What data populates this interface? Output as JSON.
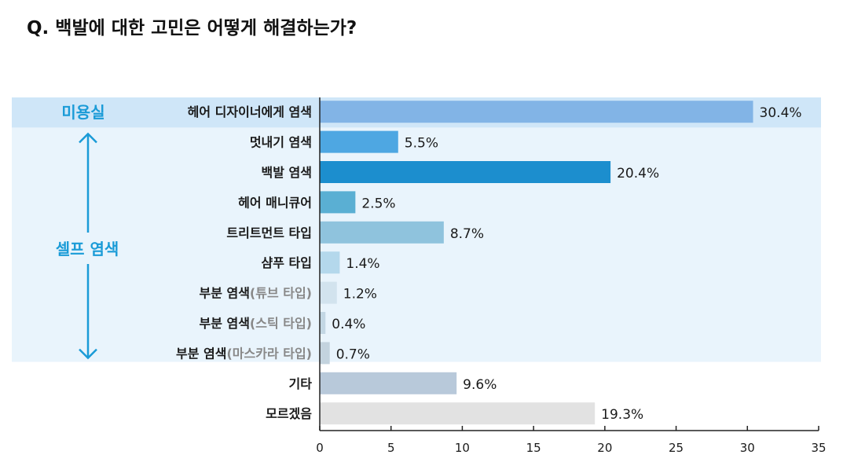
{
  "title": "Q. 백발에 대한 고민은 어떻게 해결하는가?",
  "chart_data": {
    "type": "bar",
    "orientation": "horizontal",
    "categories": [
      {
        "main": "헤어 디자이너에게 염색",
        "sub": ""
      },
      {
        "main": "멋내기 염색",
        "sub": ""
      },
      {
        "main": "백발 염색",
        "sub": ""
      },
      {
        "main": "헤어 매니큐어",
        "sub": ""
      },
      {
        "main": "트리트먼트 타입",
        "sub": ""
      },
      {
        "main": "샴푸 타입",
        "sub": ""
      },
      {
        "main": "부분 염색",
        "sub": "(튜브 타입)"
      },
      {
        "main": "부분 염색",
        "sub": "(스틱 타입)"
      },
      {
        "main": "부분 염색",
        "sub": "(마스카라 타입)"
      },
      {
        "main": "기타",
        "sub": ""
      },
      {
        "main": "모르겠음",
        "sub": ""
      }
    ],
    "values": [
      30.4,
      5.5,
      20.4,
      2.5,
      8.7,
      1.4,
      1.2,
      0.4,
      0.7,
      9.6,
      19.3
    ],
    "value_labels": [
      "30.4%",
      "5.5%",
      "20.4%",
      "2.5%",
      "8.7%",
      "1.4%",
      "1.2%",
      "0.4%",
      "0.7%",
      "9.6%",
      "19.3%"
    ],
    "colors": [
      "#82b4e6",
      "#4ea7e2",
      "#1c8ece",
      "#5aafd3",
      "#8fc3dd",
      "#b4d8ec",
      "#d2e3ee",
      "#c3d7e4",
      "#c3d3de",
      "#b8c9da",
      "#e2e2e2"
    ],
    "xlim": [
      0,
      35
    ],
    "xticks": [
      0,
      5,
      10,
      15,
      20,
      25,
      30,
      35
    ],
    "groups": [
      {
        "label": "미용실",
        "rows": [
          0,
          0
        ],
        "band_color": "#cfe6f8"
      },
      {
        "label": "셀프 염색",
        "rows": [
          1,
          8
        ],
        "band_color": "#e9f4fc"
      }
    ],
    "group_label_color": "#1a9bd7",
    "arrow_color": "#1a9bd7",
    "grid": false
  }
}
